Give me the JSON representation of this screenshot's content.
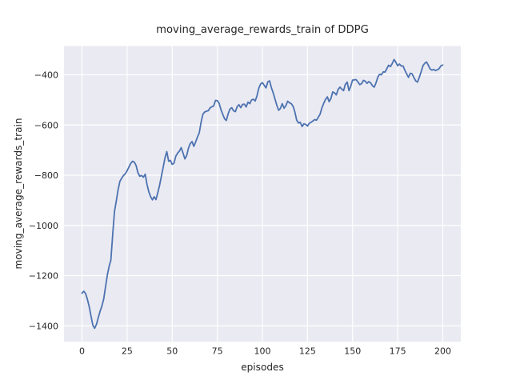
{
  "figure": {
    "title": "moving_average_rewards_train of DDPG",
    "xlabel": "episodes",
    "ylabel": "moving_average_rewards_train"
  },
  "chart_data": {
    "type": "line",
    "title": "moving_average_rewards_train of DDPG",
    "xlabel": "episodes",
    "ylabel": "moving_average_rewards_train",
    "legend_position": "none",
    "grid": true,
    "xlim": [
      -10,
      210
    ],
    "ylim": [
      -1463.5,
      -285.5
    ],
    "xticks": [
      0,
      25,
      50,
      75,
      100,
      125,
      150,
      175,
      200
    ],
    "yticks": [
      -400,
      -600,
      -800,
      -1000,
      -1200,
      -1400
    ],
    "style": {
      "figure_bg": "#ffffff",
      "axes_bg": "#eaeaf2",
      "grid_color": "#ffffff",
      "text_color": "#262626",
      "line_color": "#4c72b0",
      "line_width": 1.8
    },
    "x": [
      0,
      1,
      2,
      3,
      4,
      5,
      6,
      7,
      8,
      9,
      10,
      11,
      12,
      13,
      14,
      15,
      16,
      17,
      18,
      19,
      20,
      21,
      22,
      23,
      24,
      25,
      26,
      27,
      28,
      29,
      30,
      31,
      32,
      33,
      34,
      35,
      36,
      37,
      38,
      39,
      40,
      41,
      42,
      43,
      44,
      45,
      46,
      47,
      48,
      49,
      50,
      51,
      52,
      53,
      54,
      55,
      56,
      57,
      58,
      59,
      60,
      61,
      62,
      63,
      64,
      65,
      66,
      67,
      68,
      69,
      70,
      71,
      72,
      73,
      74,
      75,
      76,
      77,
      78,
      79,
      80,
      81,
      82,
      83,
      84,
      85,
      86,
      87,
      88,
      89,
      90,
      91,
      92,
      93,
      94,
      95,
      96,
      97,
      98,
      99,
      100,
      101,
      102,
      103,
      104,
      105,
      106,
      107,
      108,
      109,
      110,
      111,
      112,
      113,
      114,
      115,
      116,
      117,
      118,
      119,
      120,
      121,
      122,
      123,
      124,
      125,
      126,
      127,
      128,
      129,
      130,
      131,
      132,
      133,
      134,
      135,
      136,
      137,
      138,
      139,
      140,
      141,
      142,
      143,
      144,
      145,
      146,
      147,
      148,
      149,
      150,
      151,
      152,
      153,
      154,
      155,
      156,
      157,
      158,
      159,
      160,
      161,
      162,
      163,
      164,
      165,
      166,
      167,
      168,
      169,
      170,
      171,
      172,
      173,
      174,
      175,
      176,
      177,
      178,
      179,
      180,
      181,
      182,
      183,
      184,
      185,
      186,
      187,
      188,
      189,
      190,
      191,
      192,
      193,
      194,
      195,
      196,
      197,
      198,
      199,
      200
    ],
    "series": [
      {
        "name": "moving_average_rewards_train",
        "color": "#4c72b0",
        "values": [
          -1270,
          -1262,
          -1272,
          -1295,
          -1325,
          -1362,
          -1398,
          -1410,
          -1394,
          -1368,
          -1342,
          -1322,
          -1294,
          -1245,
          -1199,
          -1163,
          -1138,
          -1035,
          -945,
          -902,
          -858,
          -824,
          -812,
          -801,
          -794,
          -782,
          -767,
          -753,
          -744,
          -748,
          -762,
          -790,
          -804,
          -801,
          -808,
          -796,
          -836,
          -866,
          -885,
          -898,
          -886,
          -897,
          -870,
          -840,
          -805,
          -768,
          -730,
          -706,
          -744,
          -741,
          -757,
          -752,
          -724,
          -712,
          -704,
          -690,
          -712,
          -735,
          -722,
          -692,
          -674,
          -666,
          -685,
          -667,
          -648,
          -631,
          -590,
          -557,
          -548,
          -545,
          -543,
          -532,
          -527,
          -524,
          -502,
          -503,
          -513,
          -538,
          -557,
          -575,
          -582,
          -555,
          -537,
          -531,
          -543,
          -547,
          -527,
          -519,
          -531,
          -518,
          -517,
          -528,
          -509,
          -515,
          -500,
          -497,
          -504,
          -484,
          -453,
          -437,
          -431,
          -442,
          -452,
          -428,
          -424,
          -452,
          -472,
          -497,
          -521,
          -541,
          -534,
          -515,
          -533,
          -523,
          -505,
          -511,
          -515,
          -525,
          -548,
          -580,
          -592,
          -589,
          -606,
          -595,
          -598,
          -604,
          -593,
          -589,
          -584,
          -578,
          -581,
          -569,
          -557,
          -532,
          -513,
          -498,
          -488,
          -507,
          -494,
          -468,
          -472,
          -480,
          -458,
          -449,
          -457,
          -463,
          -438,
          -429,
          -463,
          -445,
          -421,
          -420,
          -419,
          -429,
          -439,
          -435,
          -422,
          -425,
          -434,
          -427,
          -432,
          -443,
          -449,
          -432,
          -409,
          -398,
          -400,
          -388,
          -389,
          -375,
          -362,
          -367,
          -355,
          -339,
          -350,
          -364,
          -357,
          -365,
          -365,
          -382,
          -397,
          -410,
          -394,
          -396,
          -411,
          -424,
          -429,
          -410,
          -388,
          -364,
          -354,
          -349,
          -362,
          -377,
          -381,
          -379,
          -383,
          -380,
          -375,
          -364,
          -361
        ]
      }
    ]
  }
}
